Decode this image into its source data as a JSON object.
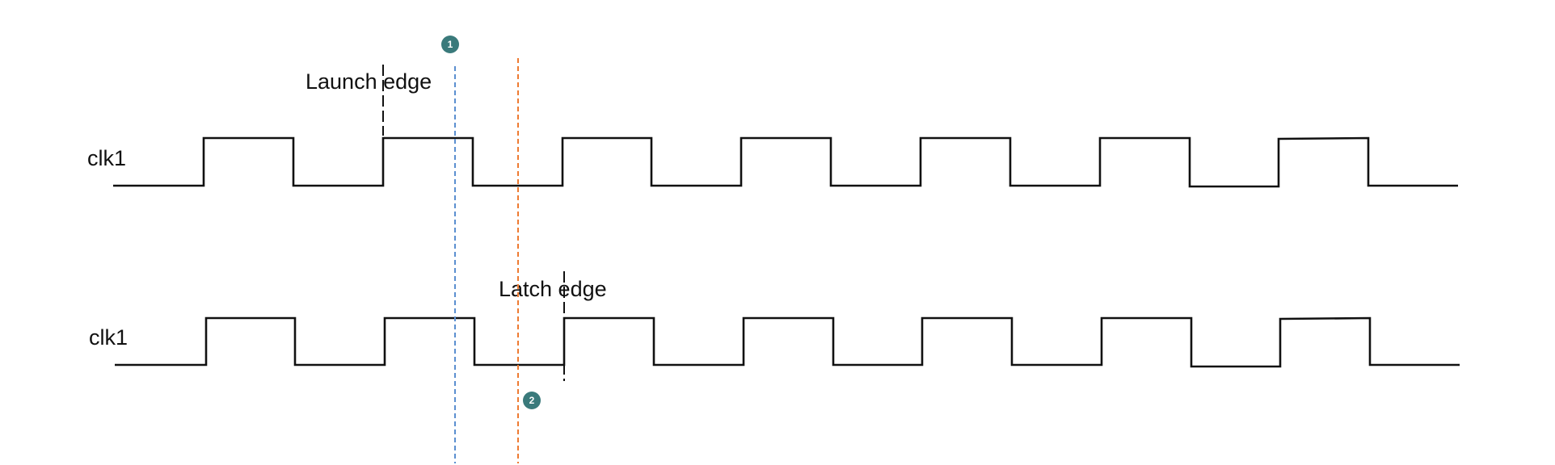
{
  "signals": [
    {
      "label": "clk1"
    },
    {
      "label": "clk1"
    }
  ],
  "annotations": {
    "launch": "Launch edge",
    "latch": "Latch edge"
  },
  "markers": [
    {
      "label": "1",
      "color": "#3a7a7b",
      "line_color": "#5b8fd0"
    },
    {
      "label": "2",
      "color": "#3a7a7b",
      "line_color": "#ee7b32"
    }
  ]
}
